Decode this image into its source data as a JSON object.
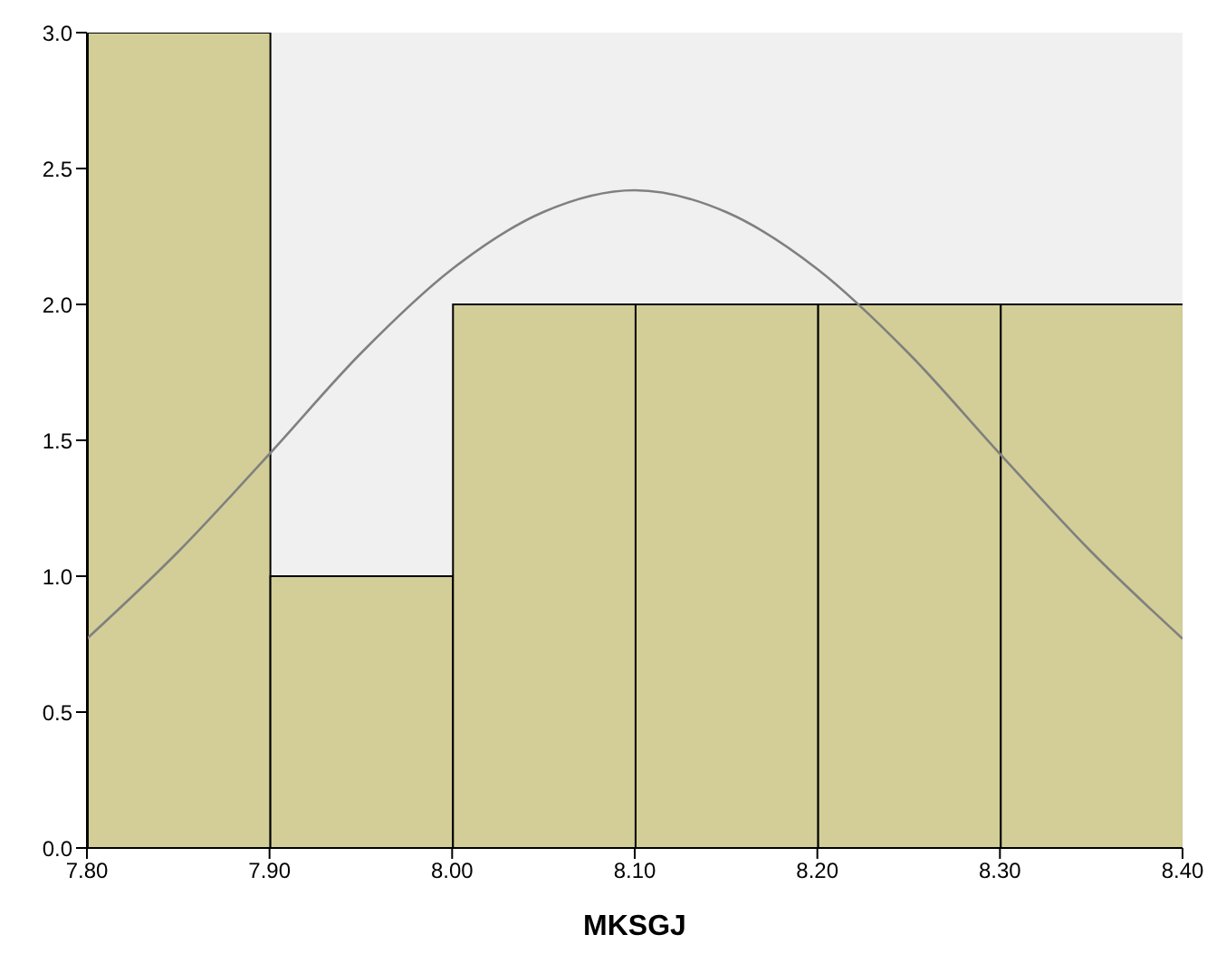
{
  "chart_data": {
    "type": "histogram",
    "xlabel": "MKSGJ",
    "bins": [
      7.8,
      7.9,
      8.0,
      8.1,
      8.2,
      8.3,
      8.4
    ],
    "values": [
      3,
      1,
      2,
      2,
      2,
      2
    ],
    "color": "#d3ce97",
    "series": [
      {
        "type": "line",
        "color": "#808080",
        "x": [
          7.8,
          7.85,
          7.9,
          7.95,
          8.0,
          8.05,
          8.1,
          8.15,
          8.2,
          8.25,
          8.3,
          8.35,
          8.4
        ],
        "values": [
          0.77,
          1.09,
          1.45,
          1.82,
          2.13,
          2.34,
          2.42,
          2.34,
          2.13,
          1.82,
          1.45,
          1.09,
          0.77
        ]
      }
    ],
    "xlim": [
      7.8,
      8.4
    ],
    "xticks": [
      {
        "value": 7.8,
        "label": "7.80"
      },
      {
        "value": 7.9,
        "label": "7.90"
      },
      {
        "value": 8.0,
        "label": "8.00"
      },
      {
        "value": 8.1,
        "label": "8.10"
      },
      {
        "value": 8.2,
        "label": "8.20"
      },
      {
        "value": 8.3,
        "label": "8.30"
      },
      {
        "value": 8.4,
        "label": "8.40"
      }
    ],
    "ylim": [
      0,
      3
    ],
    "yticks": [
      {
        "value": 0,
        "label": "0.0"
      },
      {
        "value": 0.5,
        "label": "0.5"
      },
      {
        "value": 1,
        "label": "1.0"
      },
      {
        "value": 1.5,
        "label": "1.5"
      },
      {
        "value": 2,
        "label": "2.0"
      },
      {
        "value": 2.5,
        "label": "2.5"
      },
      {
        "value": 3,
        "label": "3.0"
      }
    ],
    "grid": false
  }
}
